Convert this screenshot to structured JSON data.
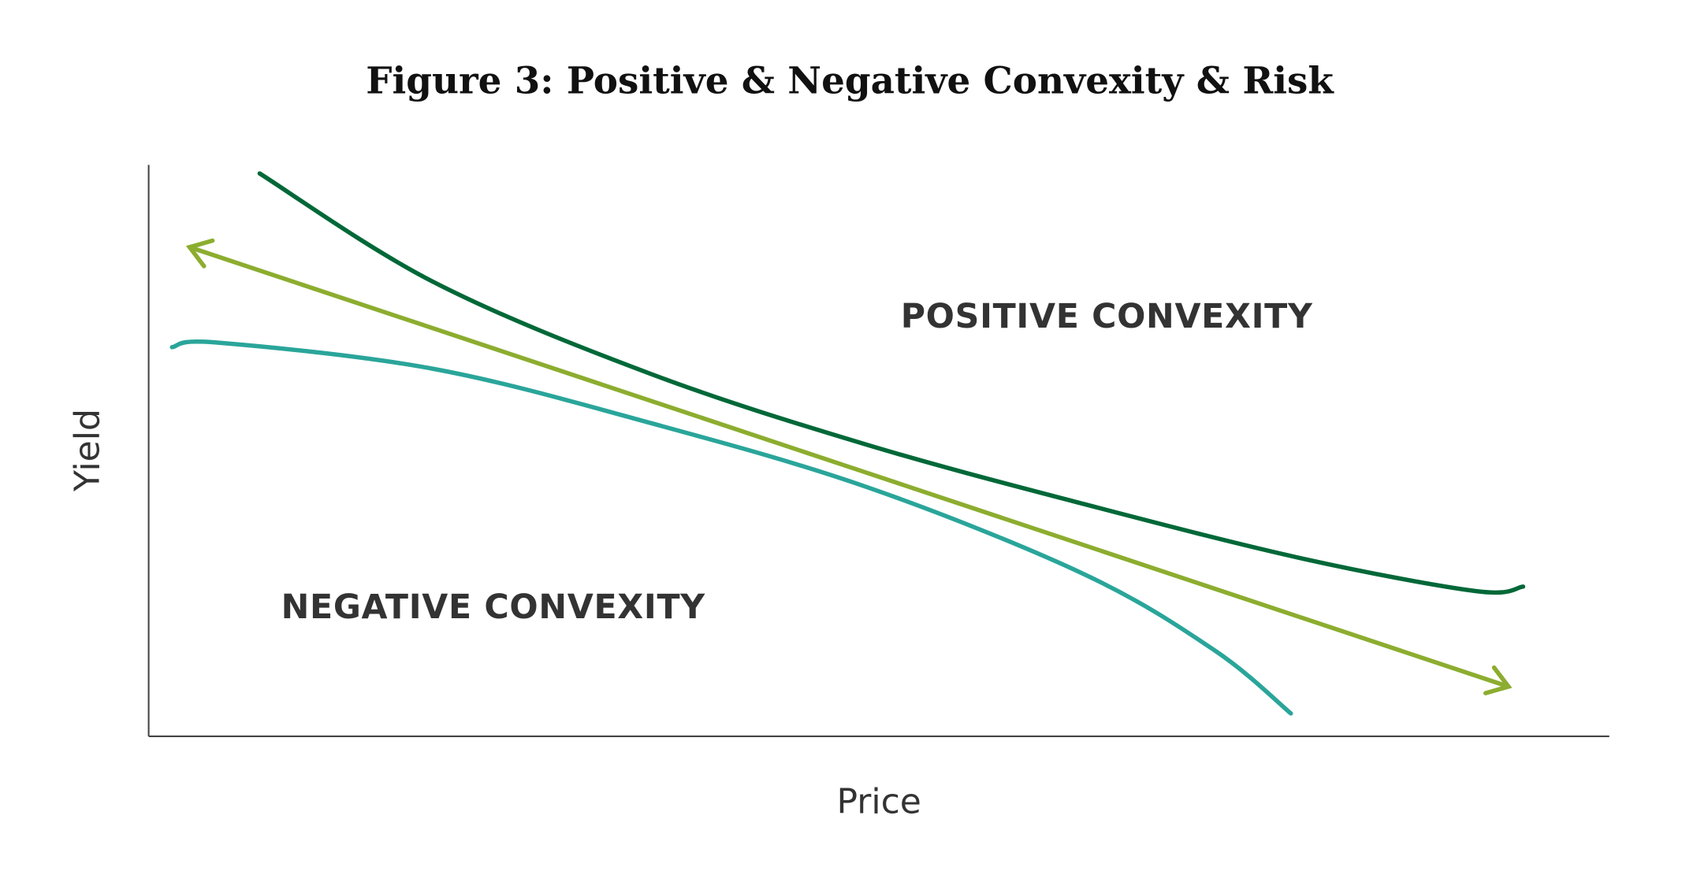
{
  "chart_data": {
    "type": "line",
    "title": "Figure 3: Positive & Negative Convexity & Risk",
    "xlabel": "Price",
    "ylabel": "Yield",
    "xlim": [
      0,
      100
    ],
    "ylim": [
      0,
      100
    ],
    "grid": false,
    "annotations": [
      "POSITIVE CONVEXITY",
      "NEGATIVE CONVEXITY"
    ],
    "series": [
      {
        "name": "Positive convexity curve",
        "color": "#006838",
        "x": [
          7.6,
          19.5,
          34.4,
          49.2,
          64.1,
          79.0,
          90.9,
          94.1
        ],
        "y": [
          98.5,
          79.5,
          63.4,
          51.0,
          40.6,
          31.1,
          25.4,
          26.2
        ]
      },
      {
        "name": "Negative convexity curve",
        "color": "#2aa59a",
        "x": [
          1.6,
          4.7,
          19.5,
          34.4,
          49.3,
          64.1,
          73.0,
          78.2
        ],
        "y": [
          68.1,
          68.9,
          64.3,
          54.8,
          43.5,
          28.3,
          15.0,
          4.0
        ]
      },
      {
        "name": "Duration line (double arrow)",
        "color": "#8cad2f",
        "x": [
          2.8,
          93.1
        ],
        "y": [
          85.6,
          8.7
        ]
      }
    ]
  }
}
